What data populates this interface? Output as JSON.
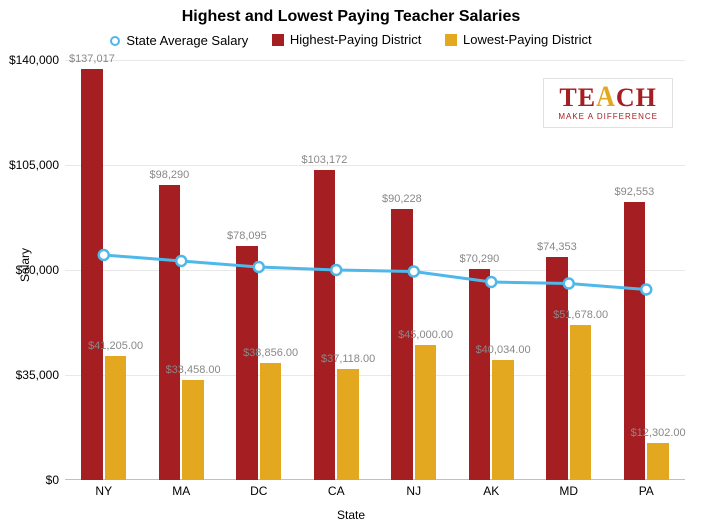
{
  "chart": {
    "type": "bar+line",
    "title": "Highest and Lowest Paying Teacher Salaries",
    "xlabel": "State",
    "ylabel": "Salary",
    "ylim": [
      0,
      140000
    ],
    "ytick_step": 35000,
    "ytick_labels": [
      "$0",
      "$35,000",
      "$70,000",
      "$105,000",
      "$140,000"
    ],
    "background_color": "#ffffff",
    "grid_color": "#e8e8e8",
    "categories": [
      "NY",
      "MA",
      "DC",
      "CA",
      "NJ",
      "AK",
      "MD",
      "PA"
    ],
    "series": {
      "state_avg": {
        "label": "State Average Salary",
        "type": "line",
        "color": "#4fb8ea",
        "marker": "circle-open",
        "marker_fill": "#ffffff",
        "marker_border": "#4fb8ea",
        "line_width": 3,
        "values": [
          75000,
          73000,
          71000,
          70000,
          69500,
          66000,
          65500,
          63500
        ]
      },
      "highest": {
        "label": "Highest-Paying District",
        "type": "bar",
        "color": "#a41e22",
        "values": [
          137017,
          98290,
          78095,
          103172,
          90228,
          70290,
          74353,
          92553
        ],
        "value_labels": [
          "$137,017",
          "$98,290",
          "$78,095",
          "$103,172",
          "$90,228",
          "$70,290",
          "$74,353",
          "$92,553"
        ]
      },
      "lowest": {
        "label": "Lowest-Paying District",
        "type": "bar",
        "color": "#e3a820",
        "values": [
          41205,
          33458,
          38856,
          37118,
          45000,
          40034,
          51678,
          12302
        ],
        "value_labels": [
          "$41,205.00",
          "$33,458.00",
          "$38,856.00",
          "$37,118.00",
          "$45,000.00",
          "$40,034.00",
          "$51,678.00",
          "$12,302.00"
        ]
      }
    },
    "logo": {
      "top_pre": "TE",
      "top_a": "A",
      "top_post": "CH",
      "sub": "MAKE A DIFFERENCE"
    }
  }
}
